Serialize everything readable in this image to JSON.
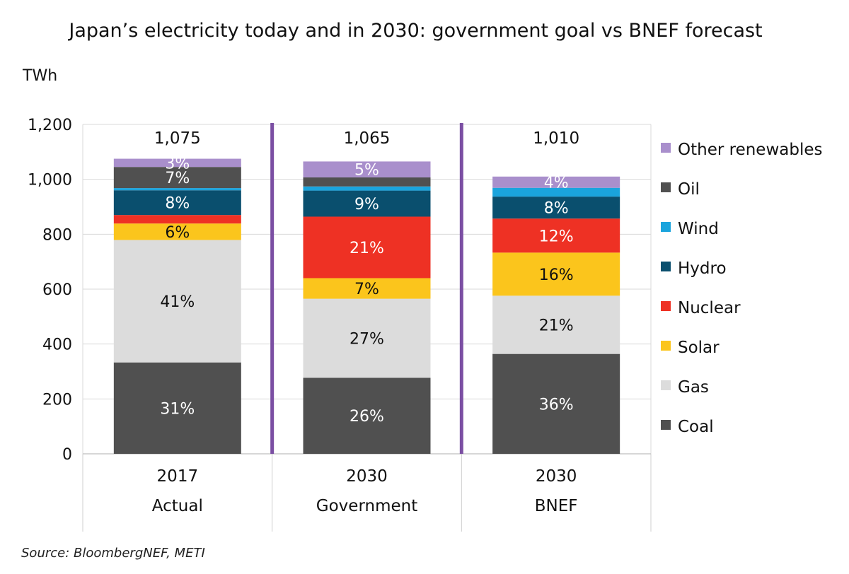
{
  "chart_data": {
    "type": "bar",
    "stacked": true,
    "title": "Japan’s electricity today and in 2030: government goal vs BNEF forecast",
    "ylabel": "TWh",
    "ylim": [
      0,
      1200
    ],
    "yticks": [
      "0",
      "200",
      "400",
      "600",
      "800",
      "1,000",
      "1,200"
    ],
    "ytick_values": [
      0,
      200,
      400,
      600,
      800,
      1000,
      1200
    ],
    "categories": [
      {
        "year": "2017",
        "label": "Actual"
      },
      {
        "year": "2030",
        "label": "Government"
      },
      {
        "year": "2030",
        "label": "BNEF"
      }
    ],
    "totals": [
      "1,075",
      "1,065",
      "1,010"
    ],
    "series": [
      {
        "name": "Coal",
        "color": "#505050",
        "values": [
          333,
          277,
          364
        ],
        "labels": [
          "31%",
          "26%",
          "36%"
        ],
        "label_dark": false
      },
      {
        "name": "Gas",
        "color": "#dcdcdc",
        "values": [
          446,
          288,
          212
        ],
        "labels": [
          "41%",
          "27%",
          "21%"
        ],
        "label_dark": true
      },
      {
        "name": "Solar",
        "color": "#fbc51c",
        "values": [
          60,
          75,
          157
        ],
        "labels": [
          "6%",
          "7%",
          "16%"
        ],
        "label_dark": true
      },
      {
        "name": "Nuclear",
        "color": "#ee3124",
        "values": [
          31,
          224,
          124
        ],
        "labels": [
          "",
          "21%",
          "12%"
        ],
        "label_dark": false
      },
      {
        "name": "Hydro",
        "color": "#0a4f6e",
        "values": [
          90,
          95,
          80
        ],
        "labels": [
          "8%",
          "9%",
          "8%"
        ],
        "label_dark": false
      },
      {
        "name": "Wind",
        "color": "#1aa4dd",
        "values": [
          8,
          15,
          32
        ],
        "labels": [
          "",
          "",
          ""
        ],
        "label_dark": false
      },
      {
        "name": "Oil",
        "color": "#505050",
        "values": [
          77,
          33,
          0
        ],
        "labels": [
          "7%",
          "",
          ""
        ],
        "label_dark": false
      },
      {
        "name": "Other renewables",
        "color": "#a98fcc",
        "values": [
          30,
          58,
          41
        ],
        "labels": [
          "3%",
          "5%",
          "4%"
        ],
        "label_dark": false
      }
    ],
    "legend_position": "right",
    "separator_color": "#7b4fa3",
    "grid": true
  },
  "source": "Source: BloombergNEF, METI"
}
